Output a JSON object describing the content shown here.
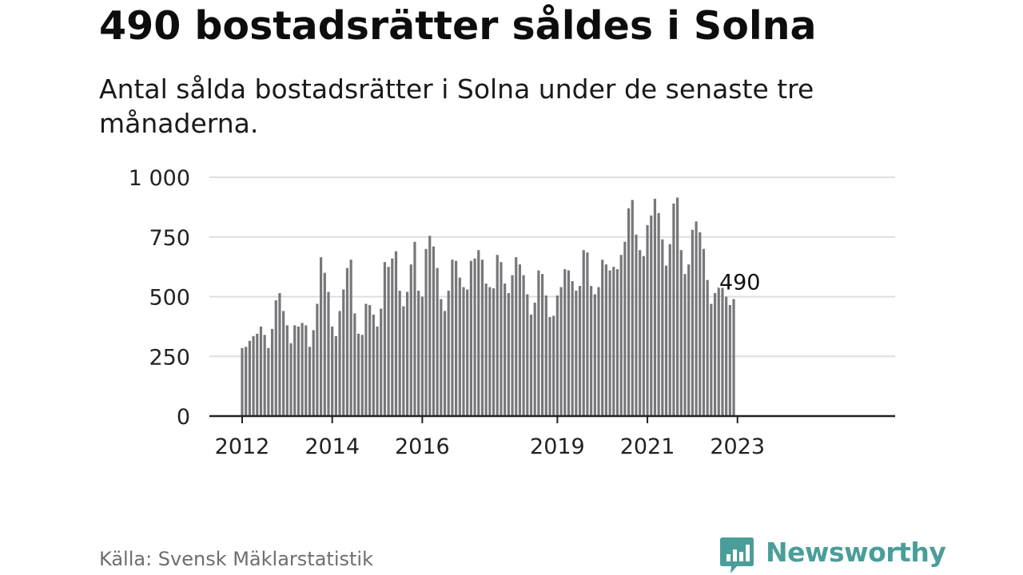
{
  "header": {
    "title": "490 bostadsrätter såldes i Solna",
    "subtitle": "Antal sålda bostadsrätter i Solna under de senaste tre månaderna."
  },
  "footer": {
    "source": "Källa: Svensk Mäklarstatistik",
    "brand": "Newsworthy"
  },
  "colors": {
    "bar": "#77767b",
    "highlight": "#13a89e",
    "grid": "#dedede",
    "axis": "#222222",
    "brand": "#4a9e9a"
  },
  "chart_data": {
    "type": "bar",
    "title": "490 bostadsrätter såldes i Solna",
    "subtitle": "Antal sålda bostadsrätter i Solna under de senaste tre månaderna.",
    "x_unit": "month",
    "x_start": "2012-01",
    "x_end": "2023-01",
    "ylim": [
      0,
      1000
    ],
    "yticks": [
      0,
      250,
      500,
      750,
      1000
    ],
    "ytick_labels": [
      "0",
      "250",
      "500",
      "750",
      "1 000"
    ],
    "xtick_labels": [
      "2012",
      "2014",
      "2016",
      "2019",
      "2021",
      "2023"
    ],
    "xtick_months": [
      "2012-01",
      "2014-01",
      "2016-01",
      "2019-01",
      "2021-01",
      "2023-01"
    ],
    "grid": "horizontal",
    "values": [
      285,
      290,
      315,
      335,
      345,
      375,
      340,
      285,
      365,
      485,
      515,
      440,
      380,
      305,
      380,
      375,
      390,
      380,
      290,
      360,
      470,
      665,
      600,
      520,
      375,
      335,
      440,
      530,
      620,
      655,
      430,
      345,
      340,
      470,
      465,
      425,
      375,
      450,
      645,
      625,
      660,
      690,
      525,
      460,
      520,
      635,
      730,
      525,
      500,
      700,
      755,
      710,
      620,
      490,
      440,
      525,
      655,
      650,
      580,
      540,
      530,
      650,
      660,
      695,
      655,
      555,
      540,
      535,
      675,
      645,
      555,
      515,
      590,
      665,
      635,
      590,
      510,
      425,
      475,
      610,
      595,
      505,
      415,
      420,
      505,
      540,
      615,
      610,
      565,
      525,
      545,
      695,
      685,
      545,
      510,
      540,
      655,
      635,
      610,
      625,
      615,
      675,
      730,
      870,
      905,
      760,
      695,
      670,
      800,
      840,
      910,
      850,
      740,
      630,
      720,
      890,
      915,
      695,
      595,
      635,
      780,
      815,
      770,
      700,
      570,
      470,
      515,
      540,
      540,
      500,
      465,
      490
    ],
    "highlight": {
      "x": "2023-01",
      "value": 490,
      "label": "490"
    }
  }
}
